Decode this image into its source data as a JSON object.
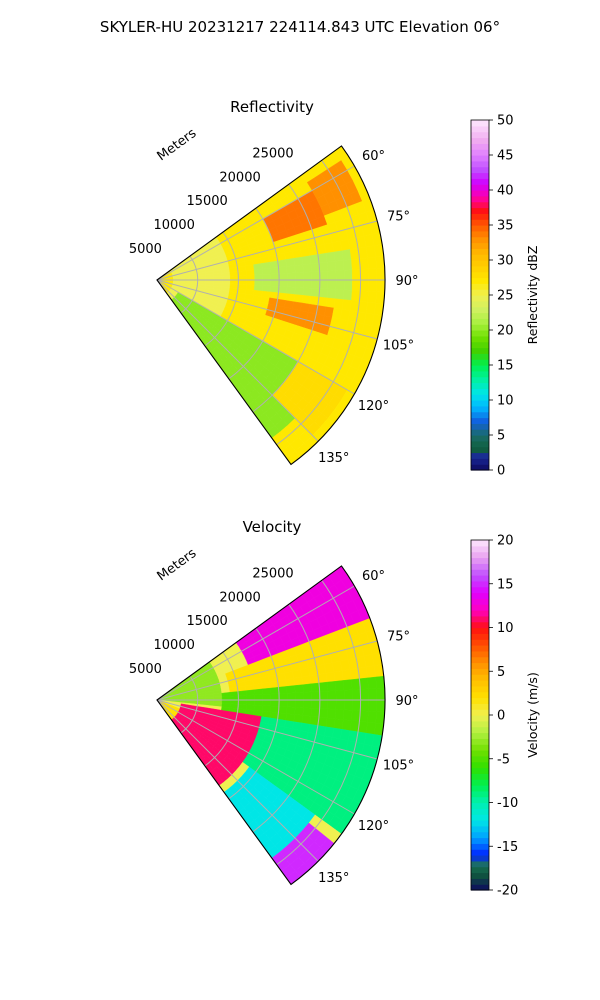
{
  "suptitle": "SKYLER-HU  20231217  224114.843 UTC Elevation 06°",
  "radial_axis_label": "Meters",
  "chart_data": [
    {
      "type": "heatmap",
      "subtype": "polar-sector-ppi",
      "title": "Reflectivity",
      "colorbar_label": "Reflectivity dBZ",
      "colorbar_range": [
        0,
        50
      ],
      "colorbar_ticks": [
        0,
        5,
        10,
        15,
        20,
        25,
        30,
        35,
        40,
        45,
        50
      ],
      "azimuth_range_deg": [
        54,
        144
      ],
      "azimuth_ticks": [
        "60°",
        "75°",
        "90°",
        "105°",
        "120°",
        "135°"
      ],
      "azimuth_tick_values": [
        60,
        75,
        90,
        105,
        120,
        135
      ],
      "range_ticks": [
        5000,
        10000,
        15000,
        20000,
        25000
      ],
      "range_max": 28000,
      "grid": true,
      "dominant_value": 27,
      "regions": [
        {
          "azimuth": [
            54,
            144
          ],
          "range": [
            2000,
            9000
          ],
          "value": 25
        },
        {
          "azimuth": [
            120,
            144
          ],
          "range": [
            3000,
            24000
          ],
          "value": 20
        },
        {
          "azimuth": [
            60,
            72
          ],
          "range": [
            15000,
            22000
          ],
          "value": 34
        },
        {
          "azimuth": [
            58,
            70
          ],
          "range": [
            22000,
            27500
          ],
          "value": 33
        },
        {
          "azimuth": [
            98,
            108
          ],
          "range": [
            14000,
            22000
          ],
          "value": 33
        },
        {
          "azimuth": [
            80,
            96
          ],
          "range": [
            12000,
            24000
          ],
          "value": 22
        },
        {
          "azimuth": [
            120,
            135
          ],
          "range": [
            20000,
            27000
          ],
          "value": 28
        }
      ]
    },
    {
      "type": "heatmap",
      "subtype": "polar-sector-ppi",
      "title": "Velocity",
      "colorbar_label": "Velocity (m/s)",
      "colorbar_range": [
        -20,
        20
      ],
      "colorbar_ticks": [
        -20,
        -15,
        -10,
        -5,
        0,
        5,
        10,
        15,
        20
      ],
      "azimuth_range_deg": [
        54,
        144
      ],
      "azimuth_ticks": [
        "60°",
        "75°",
        "90°",
        "105°",
        "120°",
        "135°"
      ],
      "azimuth_tick_values": [
        60,
        75,
        90,
        105,
        120,
        135
      ],
      "range_ticks": [
        5000,
        10000,
        15000,
        20000,
        25000
      ],
      "range_max": 28000,
      "grid": true,
      "regions": [
        {
          "azimuth": [
            54,
            70
          ],
          "range": [
            12000,
            28000
          ],
          "value": 13
        },
        {
          "azimuth": [
            70,
            84
          ],
          "range": [
            9000,
            28000
          ],
          "value": 2
        },
        {
          "azimuth": [
            84,
            100
          ],
          "range": [
            8000,
            28000
          ],
          "value": -5
        },
        {
          "azimuth": [
            100,
            125
          ],
          "range": [
            9000,
            28000
          ],
          "value": -9
        },
        {
          "azimuth": [
            125,
            144
          ],
          "range": [
            14000,
            24000
          ],
          "value": -12
        },
        {
          "azimuth": [
            110,
            144
          ],
          "range": [
            0,
            9000
          ],
          "value": 2
        },
        {
          "azimuth": [
            100,
            144
          ],
          "range": [
            3000,
            13000
          ],
          "value": 11
        },
        {
          "azimuth": [
            128,
            144
          ],
          "range": [
            24000,
            28000
          ],
          "value": 15
        },
        {
          "azimuth": [
            54,
            95
          ],
          "range": [
            0,
            8000
          ],
          "value": -3
        }
      ]
    }
  ]
}
